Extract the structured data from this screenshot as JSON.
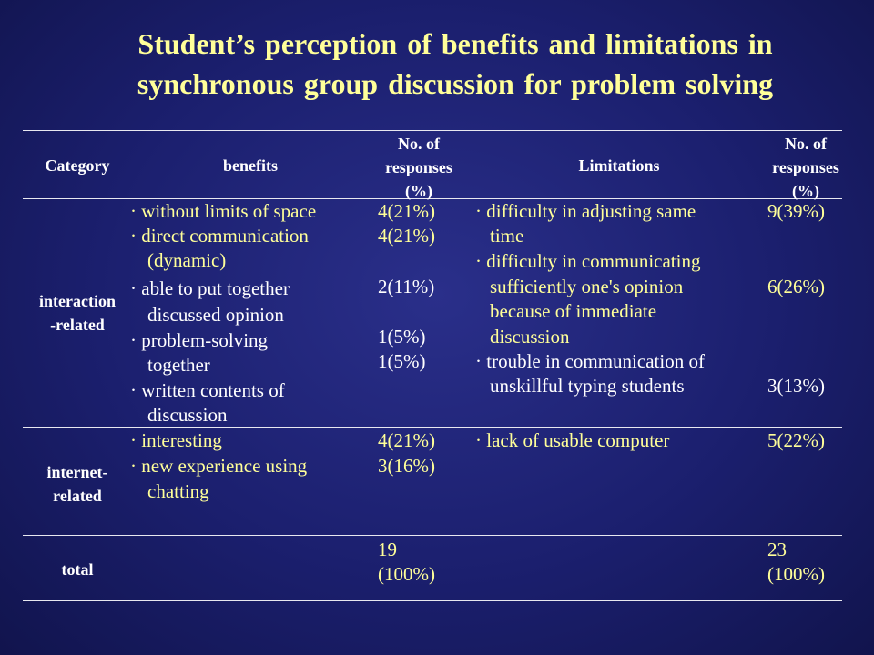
{
  "title": {
    "line1": "Student’s perception of benefits and limitations in",
    "line2": "synchronous group discussion for problem solving"
  },
  "table": {
    "headers": {
      "category": "Category",
      "benefits": "benefits",
      "no_of_1": "No. of",
      "responses_1": "responses",
      "pct_1": "(%)",
      "limitations": "Limitations",
      "no_of_2": "No. of",
      "responses_2": "responses",
      "pct_2": "(%)"
    },
    "rows": [
      {
        "category": [
          "interaction",
          "-related"
        ],
        "benefits": [
          "· without limits of space",
          "· direct communication",
          "(dynamic)",
          "·   able to put together",
          "discussed opinion",
          "· problem-solving",
          "together",
          "· written contents of",
          "discussion"
        ],
        "benefit_responses": [
          "4(21%)",
          "4(21%)",
          "2(11%)",
          "1(5%)",
          "1(5%)"
        ],
        "limitations": [
          "· difficulty in adjusting same",
          "time",
          "· difficulty in communicating",
          "sufficiently one's opinion",
          "because of immediate",
          "discussion",
          "· trouble in communication of",
          "unskillful typing students"
        ],
        "limitation_responses": [
          "9(39%)",
          "6(26%)",
          "3(13%)"
        ]
      },
      {
        "category": [
          "internet-",
          "related"
        ],
        "benefits": [
          "· interesting",
          "· new experience using",
          "chatting"
        ],
        "benefit_responses": [
          "4(21%)",
          "3(16%)"
        ],
        "limitations": [
          "· lack of usable computer"
        ],
        "limitation_responses": [
          "5(22%)"
        ]
      },
      {
        "category": [
          "total"
        ],
        "benefit_total": [
          "19",
          "(100%)"
        ],
        "limitation_total": [
          "23",
          "(100%)"
        ]
      }
    ]
  },
  "colors": {
    "background": "#1b1f6e",
    "title": "#ffff99",
    "text": "#ffffff",
    "highlight": "#ffff99"
  }
}
